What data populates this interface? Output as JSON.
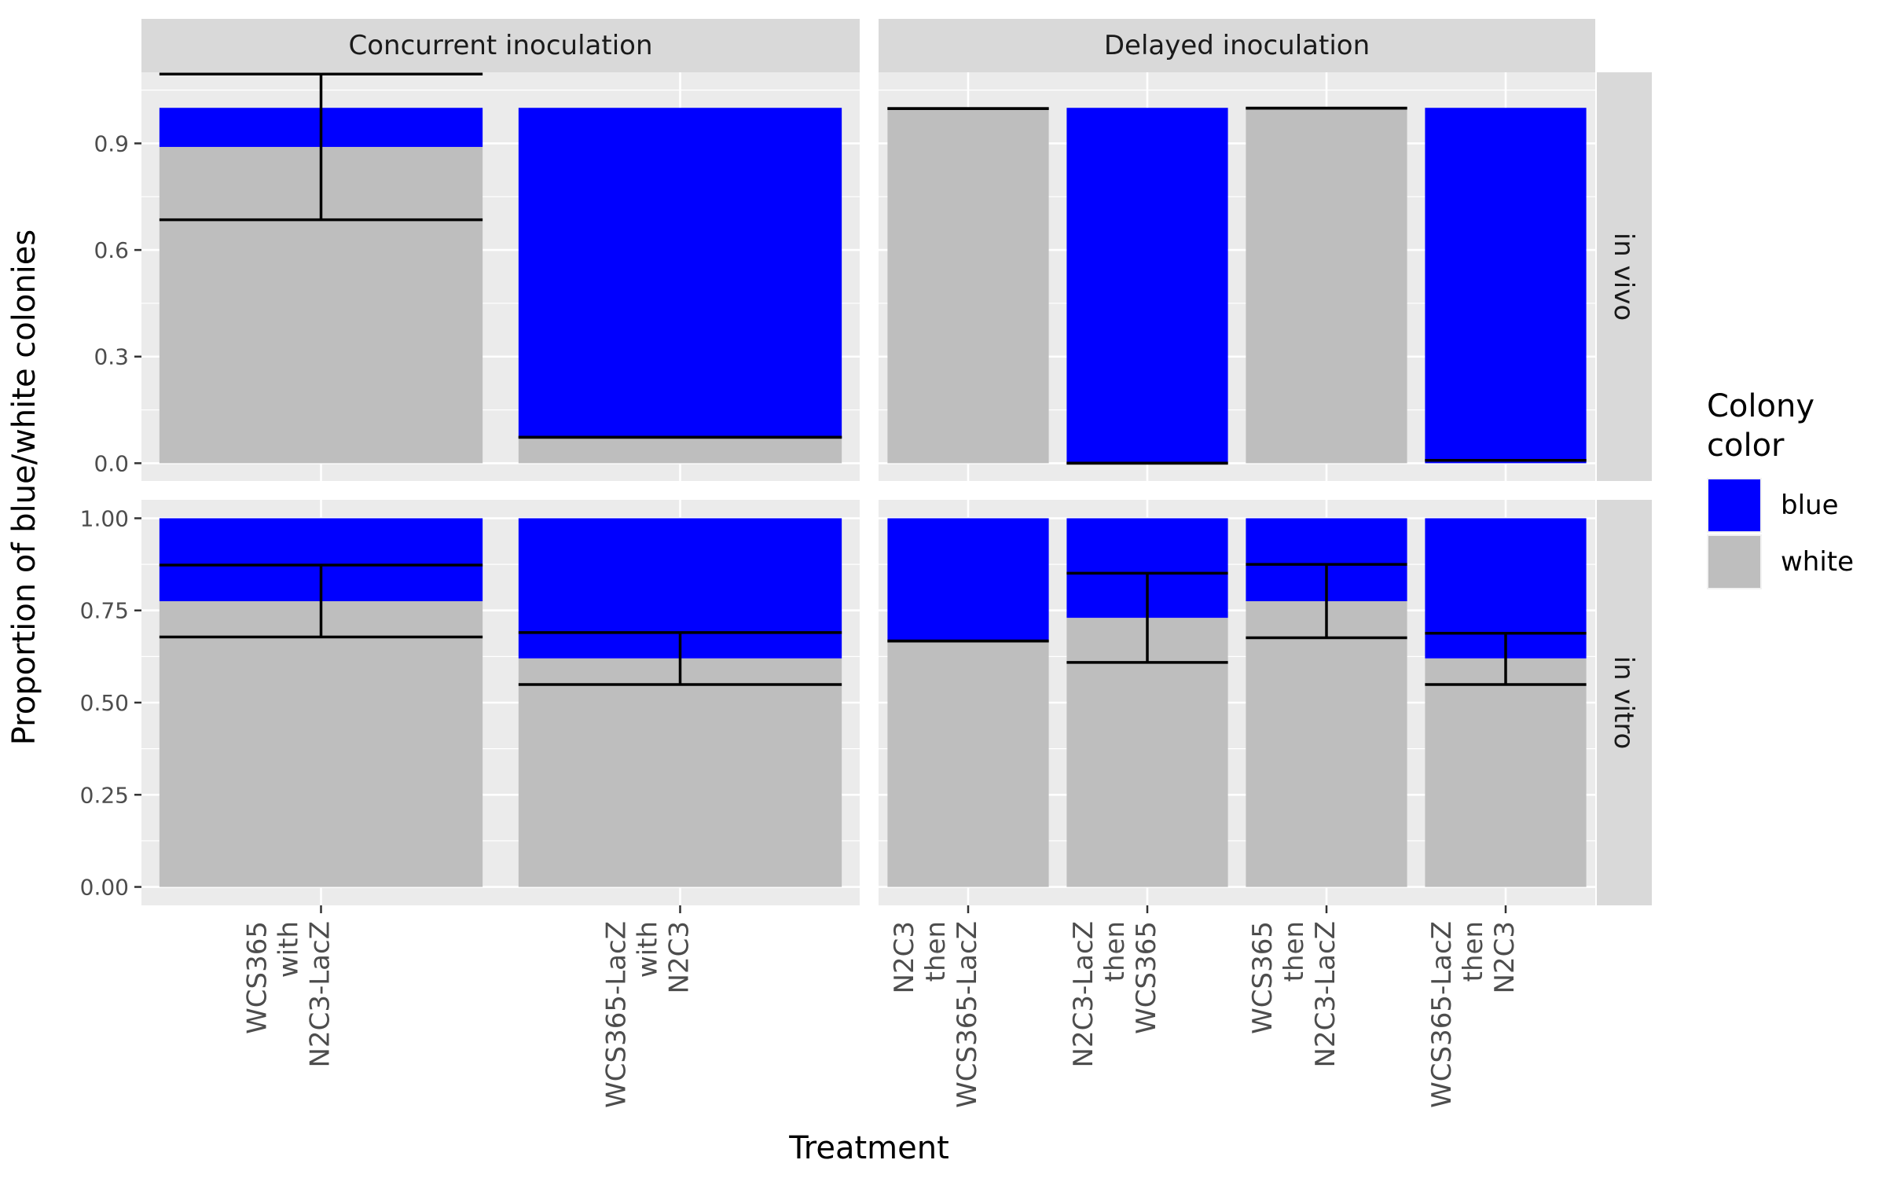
{
  "chart_data": {
    "type": "bar",
    "stacked": true,
    "xlabel": "Treatment",
    "ylabel": "Proportion of blue/white colonies",
    "legend": {
      "title_lines": [
        "Colony",
        "color"
      ],
      "placement": "right",
      "entries": [
        {
          "name": "blue",
          "color": "#0000ff"
        },
        {
          "name": "white",
          "color": "#bebebe"
        }
      ]
    },
    "facet_columns": [
      "Concurrent inoculation",
      "Delayed inoculation"
    ],
    "facet_rows": [
      "in vivo",
      "in vitro"
    ],
    "row_axes": [
      {
        "ylim": [
          -0.05,
          1.1
        ],
        "ticks": [
          0.0,
          0.3,
          0.6,
          0.9
        ],
        "tick_labels": [
          "0.0",
          "0.3",
          "0.6",
          "0.9"
        ]
      },
      {
        "ylim": [
          -0.05,
          1.05
        ],
        "ticks": [
          0.0,
          0.25,
          0.5,
          0.75,
          1.0
        ],
        "tick_labels": [
          "0.00",
          "0.25",
          "0.50",
          "0.75",
          "1.00"
        ]
      }
    ],
    "column_categories": [
      [
        {
          "lines": [
            "WCS365",
            "with",
            "N2C3-LacZ"
          ]
        },
        {
          "lines": [
            "WCS365-LacZ",
            "with",
            "N2C3"
          ]
        }
      ],
      [
        {
          "lines": [
            "N2C3",
            "then",
            "WCS365-LacZ"
          ]
        },
        {
          "lines": [
            "N2C3-LacZ",
            "then",
            "WCS365"
          ]
        },
        {
          "lines": [
            "WCS365",
            "then",
            "N2C3-LacZ"
          ]
        },
        {
          "lines": [
            "WCS365-LacZ",
            "then",
            "N2C3"
          ]
        }
      ]
    ],
    "panels": [
      {
        "row": 0,
        "col": 0,
        "bars": [
          {
            "white": 0.89,
            "blue": 0.11,
            "err_low": 0.685,
            "err_high": 1.095
          },
          {
            "white": 0.07,
            "blue": 0.93,
            "err_low": 0.073,
            "err_high": 0.073
          }
        ]
      },
      {
        "row": 0,
        "col": 1,
        "bars": [
          {
            "white": 1.0,
            "blue": 0.0,
            "err_low": 0.998,
            "err_high": 0.998
          },
          {
            "white": 0.0,
            "blue": 1.0,
            "err_low": 0.0,
            "err_high": 0.0
          },
          {
            "white": 1.0,
            "blue": 0.0,
            "err_low": 0.999,
            "err_high": 0.999
          },
          {
            "white": 0.0,
            "blue": 1.0,
            "err_low": 0.008,
            "err_high": 0.008
          }
        ]
      },
      {
        "row": 1,
        "col": 0,
        "bars": [
          {
            "white": 0.775,
            "blue": 0.225,
            "err_low": 0.678,
            "err_high": 0.873
          },
          {
            "white": 0.62,
            "blue": 0.38,
            "err_low": 0.549,
            "err_high": 0.69
          }
        ]
      },
      {
        "row": 1,
        "col": 1,
        "bars": [
          {
            "white": 0.67,
            "blue": 0.33,
            "err_low": 0.667,
            "err_high": 0.667
          },
          {
            "white": 0.73,
            "blue": 0.27,
            "err_low": 0.609,
            "err_high": 0.851
          },
          {
            "white": 0.775,
            "blue": 0.225,
            "err_low": 0.676,
            "err_high": 0.875
          },
          {
            "white": 0.62,
            "blue": 0.38,
            "err_low": 0.549,
            "err_high": 0.688
          }
        ]
      }
    ]
  }
}
